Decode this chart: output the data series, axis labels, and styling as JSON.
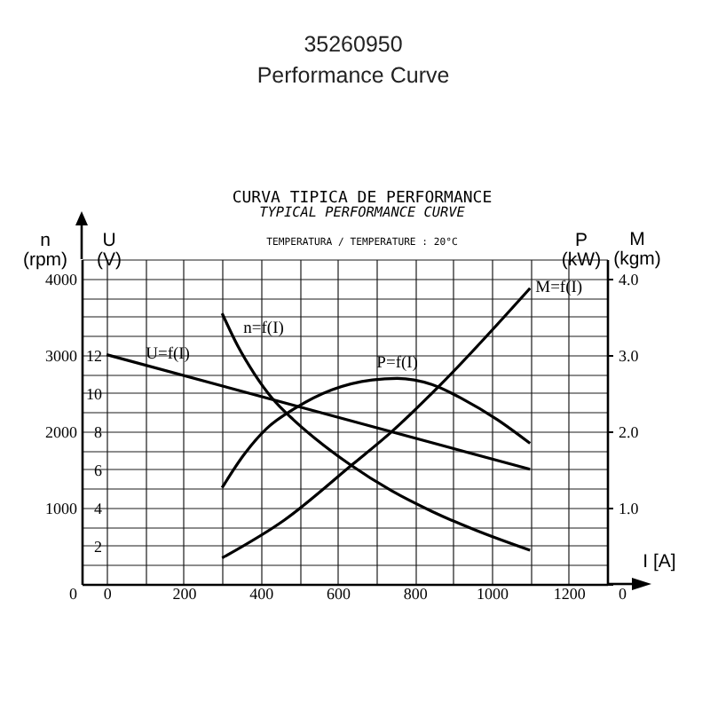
{
  "chart_data": {
    "type": "line",
    "title": "35260950",
    "subtitle": "Performance Curve",
    "xlabel": "I [A]",
    "ylabel": "n (rpm)",
    "y2label": "P (kW)",
    "y3label": "U (V)",
    "annotations": [
      "CURVA TIPICA DE PERFORMANCE",
      "TYPICAL PERFORMANCE CURVE",
      "TEMPERATURA / TEMPERATURE : 20°C",
      "M (kgm)"
    ],
    "xlim": [
      -65,
      1300
    ],
    "xticks": [
      0,
      {
        "value": 100,
        "label": null
      },
      200,
      {
        "value": 300,
        "label": null
      },
      400,
      {
        "value": 500,
        "label": null
      },
      600,
      {
        "value": 700,
        "label": null
      },
      800,
      {
        "value": 900,
        "label": null
      },
      1000,
      {
        "value": 1100,
        "label": null
      },
      1200,
      {
        "value": 1300,
        "label": null
      }
    ],
    "ylim": [
      0,
      4250
    ],
    "yticks": [
      0,
      {
        "value": 250,
        "label": null
      },
      {
        "value": 500,
        "label": null
      },
      {
        "value": 750,
        "label": null
      },
      1000,
      {
        "value": 1250,
        "label": null
      },
      {
        "value": 1500,
        "label": null
      },
      {
        "value": 1750,
        "label": null
      },
      2000,
      {
        "value": 2250,
        "label": null
      },
      {
        "value": 2500,
        "label": null
      },
      {
        "value": 2750,
        "label": null
      },
      3000,
      {
        "value": 3250,
        "label": null
      },
      {
        "value": 3500,
        "label": null
      },
      {
        "value": 3750,
        "label": null
      },
      4000,
      {
        "value": 4250,
        "label": null
      }
    ],
    "y2lim": [
      0,
      4.25
    ],
    "y2ticks": [
      0,
      {
        "value": 1,
        "label": "1.0"
      },
      {
        "value": 2,
        "label": "2.0"
      },
      {
        "value": 3,
        "label": "3.0"
      },
      {
        "value": 4,
        "label": "4.0"
      }
    ],
    "y3lim": [
      0,
      17
    ],
    "y3ticks": [
      2,
      4,
      6,
      8,
      10,
      12
    ],
    "grid": true,
    "series": [
      {
        "name": "n=f(I)",
        "color": "#000000",
        "axis": "y",
        "x": [
          300,
          340,
          385,
          430,
          485,
          540,
          630,
          740,
          845,
          955,
          1100
        ],
        "values": [
          3540,
          3120,
          2740,
          2430,
          2150,
          1910,
          1570,
          1220,
          950,
          710,
          440
        ]
      },
      {
        "name": "U=f(I)",
        "color": "#000000",
        "axis": "y3",
        "x": [
          0,
          1100
        ],
        "values": [
          12,
          6
        ]
      },
      {
        "name": "P=f(I)",
        "color": "#000000",
        "axis": "y2",
        "x": [
          300,
          355,
          415,
          490,
          585,
          690,
          755,
          845,
          925,
          1015,
          1100
        ],
        "values": [
          1.26,
          1.68,
          2.03,
          2.3,
          2.54,
          2.67,
          2.69,
          2.61,
          2.42,
          2.15,
          1.84
        ]
      },
      {
        "name": "M=f(I)",
        "color": "#000000",
        "axis": "y2",
        "x": [
          300,
          460,
          640,
          740,
          860,
          1100
        ],
        "values": [
          0.34,
          0.83,
          1.57,
          1.99,
          2.57,
          3.87
        ]
      }
    ]
  }
}
